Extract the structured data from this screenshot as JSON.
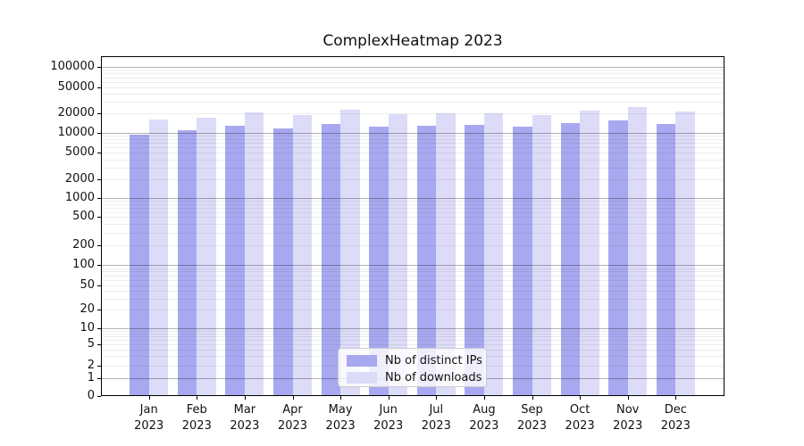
{
  "chart_data": {
    "type": "bar",
    "title": "ComplexHeatmap 2023",
    "categories": [
      "Jan",
      "Feb",
      "Mar",
      "Apr",
      "May",
      "Jun",
      "Jul",
      "Aug",
      "Sep",
      "Oct",
      "Nov",
      "Dec"
    ],
    "category_year": "2023",
    "series": [
      {
        "name": "Nb of distinct IPs",
        "color": "#a8a8f0",
        "values": [
          9300,
          10800,
          12600,
          11400,
          13300,
          12400,
          12600,
          13000,
          12200,
          13700,
          15200,
          13300
        ]
      },
      {
        "name": "Nb of downloads",
        "color": "#dcdcf8",
        "values": [
          15700,
          17000,
          20700,
          18600,
          22500,
          19300,
          20100,
          19900,
          18700,
          22100,
          24500,
          21400
        ]
      }
    ],
    "xlabel": "",
    "ylabel": "",
    "yticks": [
      0,
      1,
      2,
      5,
      10,
      20,
      50,
      100,
      200,
      500,
      1000,
      2000,
      5000,
      10000,
      20000,
      50000,
      100000
    ],
    "yscale": "log-like with 0 baseline",
    "ylim": [
      0,
      146000
    ],
    "grid": "horizontal, light minor lines (2-9 per decade) + darker decade lines, drawn over bars",
    "legend_position": "lower center inside plot"
  }
}
